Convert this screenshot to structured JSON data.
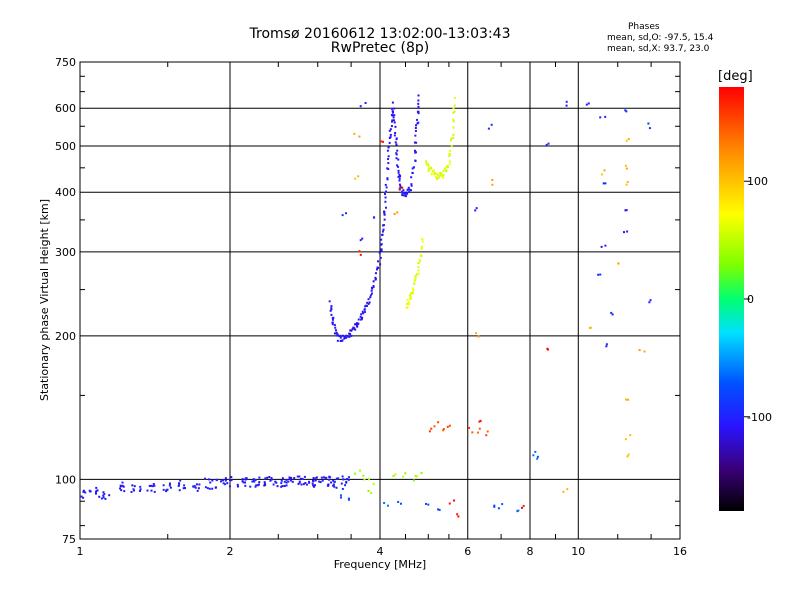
{
  "chart_data": {
    "type": "scatter",
    "title": "Tromsø 20160612 13:02:00-13:03:43",
    "subtitle": "RwPretec (8p)",
    "xlabel": "Frequency [MHz]",
    "ylabel": "Stationary phase Virtual Height [km]",
    "x_scale": "log",
    "y_scale": "log",
    "xlim": [
      1,
      16
    ],
    "ylim": [
      75,
      750
    ],
    "x_ticks": [
      1,
      2,
      4,
      6,
      8,
      10,
      16
    ],
    "y_ticks": [
      75,
      100,
      200,
      300,
      400,
      500,
      600,
      750
    ],
    "grid": true,
    "legend": {
      "title": "Phases",
      "line_o": "mean, sd,O: -97.5, 15.4",
      "line_x": "mean, sd,X:  93.7, 23.0"
    },
    "colorbar": {
      "label": "[deg]",
      "range": [
        -180,
        180
      ],
      "ticks": [
        100,
        0,
        -100
      ]
    },
    "traces": [
      {
        "mode": "scatter",
        "phase": -105,
        "jitter": 0.035,
        "points": [
          [
            1,
            93
          ],
          [
            1.06,
            95
          ],
          [
            1.12,
            93
          ],
          [
            1.2,
            96
          ],
          [
            1.3,
            95
          ],
          [
            1.4,
            96
          ],
          [
            1.5,
            97
          ],
          [
            1.6,
            97
          ],
          [
            1.7,
            97
          ],
          [
            1.8,
            98
          ],
          [
            1.9,
            98
          ],
          [
            2.0,
            99
          ],
          [
            2.1,
            99
          ],
          [
            2.2,
            99
          ],
          [
            2.3,
            99
          ],
          [
            2.4,
            99
          ],
          [
            2.5,
            99
          ],
          [
            2.6,
            99
          ],
          [
            2.7,
            99
          ],
          [
            2.8,
            99
          ],
          [
            2.9,
            99
          ],
          [
            3.0,
            99
          ],
          [
            3.1,
            99
          ],
          [
            3.2,
            99
          ],
          [
            3.3,
            98
          ],
          [
            3.4,
            99
          ]
        ]
      },
      {
        "mode": "curve",
        "phase": -108,
        "jitter": 0.015,
        "points": [
          [
            3.18,
            235
          ],
          [
            3.22,
            212
          ],
          [
            3.3,
            198
          ],
          [
            3.4,
            198
          ],
          [
            3.5,
            203
          ],
          [
            3.6,
            212
          ],
          [
            3.7,
            222
          ],
          [
            3.8,
            237
          ],
          [
            3.9,
            258
          ],
          [
            4.0,
            290
          ],
          [
            4.05,
            330
          ],
          [
            4.1,
            380
          ],
          [
            4.15,
            460
          ],
          [
            4.2,
            540
          ],
          [
            4.25,
            610
          ],
          [
            4.3,
            520
          ],
          [
            4.35,
            450
          ],
          [
            4.4,
            405
          ],
          [
            4.5,
            395
          ],
          [
            4.6,
            410
          ],
          [
            4.7,
            470
          ],
          [
            4.75,
            560
          ],
          [
            4.8,
            640
          ]
        ]
      },
      {
        "mode": "curve",
        "phase": 62,
        "jitter": 0.015,
        "points": [
          [
            4.52,
            230
          ],
          [
            4.6,
            240
          ],
          [
            4.7,
            255
          ],
          [
            4.8,
            285
          ],
          [
            4.88,
            320
          ]
        ]
      },
      {
        "mode": "curve",
        "phase": 60,
        "jitter": 0.015,
        "points": [
          [
            4.95,
            460
          ],
          [
            5.05,
            445
          ],
          [
            5.2,
            432
          ],
          [
            5.35,
            435
          ],
          [
            5.5,
            460
          ],
          [
            5.6,
            530
          ],
          [
            5.65,
            640
          ]
        ]
      },
      {
        "mode": "scatter",
        "phase": 150,
        "jitter": 0.02,
        "points": [
          [
            5.0,
            128
          ],
          [
            5.2,
            130
          ],
          [
            5.3,
            127
          ],
          [
            5.5,
            129
          ],
          [
            6.1,
            127
          ],
          [
            6.3,
            126
          ],
          [
            6.5,
            125
          ]
        ]
      },
      {
        "mode": "scatter",
        "phase": 40,
        "jitter": 0.02,
        "points": [
          [
            3.6,
            103
          ],
          [
            3.75,
            101
          ],
          [
            3.85,
            99
          ],
          [
            4.3,
            101
          ],
          [
            4.5,
            102
          ],
          [
            4.7,
            101
          ],
          [
            4.8,
            103
          ],
          [
            3.8,
            95
          ]
        ]
      },
      {
        "mode": "scatter",
        "phase": -70,
        "jitter": 0.02,
        "points": [
          [
            3.35,
            92
          ],
          [
            3.45,
            90
          ],
          [
            4.1,
            88
          ],
          [
            4.35,
            90
          ],
          [
            5.0,
            88
          ],
          [
            5.2,
            86
          ],
          [
            6.7,
            88
          ],
          [
            7.0,
            88
          ],
          [
            7.5,
            87
          ],
          [
            8.1,
            114
          ],
          [
            8.3,
            112
          ]
        ]
      },
      {
        "mode": "scatter",
        "phase": -100,
        "jitter": 0.02,
        "points": [
          [
            8.7,
            500
          ],
          [
            9.6,
            610
          ],
          [
            10.5,
            610
          ],
          [
            11.2,
            580
          ],
          [
            12.5,
            590
          ],
          [
            12.5,
            370
          ],
          [
            12.5,
            330
          ],
          [
            11.4,
            420
          ],
          [
            11.2,
            305
          ],
          [
            11.0,
            265
          ],
          [
            11.6,
            225
          ],
          [
            11.4,
            190
          ],
          [
            13.8,
            550
          ],
          [
            13.9,
            235
          ],
          [
            6.7,
            550
          ],
          [
            6.2,
            370
          ],
          [
            3.4,
            360
          ],
          [
            3.65,
            320
          ],
          [
            3.7,
            610
          ],
          [
            3.85,
            350
          ]
        ]
      },
      {
        "mode": "scatter",
        "phase": 110,
        "jitter": 0.02,
        "points": [
          [
            3.6,
            530
          ],
          [
            4.3,
            360
          ],
          [
            12.5,
            520
          ],
          [
            12.5,
            455
          ],
          [
            12.5,
            420
          ],
          [
            12.5,
            147
          ],
          [
            12.5,
            112
          ],
          [
            12.6,
            122
          ],
          [
            13.4,
            187
          ],
          [
            9.4,
            95
          ],
          [
            12.0,
            280
          ],
          [
            11.3,
            440
          ],
          [
            6.3,
            201
          ],
          [
            6.8,
            420
          ],
          [
            3.6,
            430
          ],
          [
            10.6,
            207
          ]
        ]
      },
      {
        "mode": "scatter",
        "phase": 175,
        "jitter": 0.02,
        "points": [
          [
            8.6,
            186
          ],
          [
            5.6,
            90
          ],
          [
            6.3,
            132
          ],
          [
            5.7,
            84
          ],
          [
            7.7,
            87
          ],
          [
            3.65,
            300
          ],
          [
            4.4,
            410
          ],
          [
            4.05,
            515
          ]
        ]
      }
    ]
  }
}
